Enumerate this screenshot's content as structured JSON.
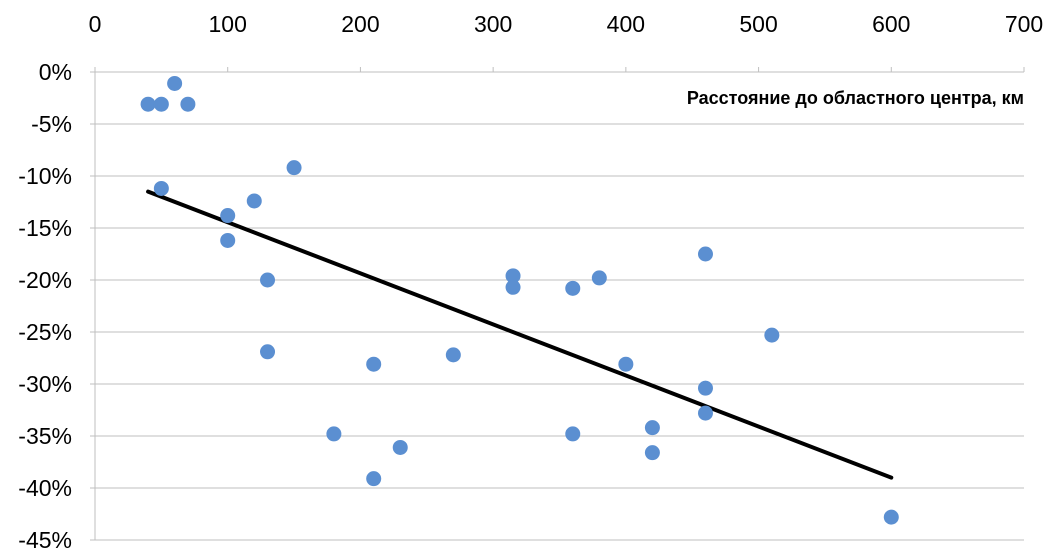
{
  "chart_data": {
    "type": "scatter",
    "title": "",
    "xlabel": "Расстояние до областного центра, км",
    "ylabel": "",
    "x_axis_position": "top",
    "xlim": [
      0,
      700
    ],
    "ylim": [
      -45,
      0
    ],
    "x_ticks": [
      0,
      100,
      200,
      300,
      400,
      500,
      600,
      700
    ],
    "x_tick_labels": [
      "0",
      "100",
      "200",
      "300",
      "400",
      "500",
      "600",
      "700"
    ],
    "y_ticks": [
      0,
      -5,
      -10,
      -15,
      -20,
      -25,
      -30,
      -35,
      -40,
      -45
    ],
    "y_tick_labels": [
      "0%",
      "-5%",
      "-10%",
      "-15%",
      "-20%",
      "-25%",
      "-30%",
      "-35%",
      "-40%",
      "-45%"
    ],
    "grid": "horizontal",
    "legend": "none",
    "series": [
      {
        "color": "#5B8FD1",
        "points": [
          {
            "x": 40,
            "y": -3.1
          },
          {
            "x": 50,
            "y": -3.1
          },
          {
            "x": 60,
            "y": -1.1
          },
          {
            "x": 70,
            "y": -3.1
          },
          {
            "x": 50,
            "y": -11.2
          },
          {
            "x": 100,
            "y": -13.8
          },
          {
            "x": 100,
            "y": -16.2
          },
          {
            "x": 120,
            "y": -12.4
          },
          {
            "x": 130,
            "y": -20.0
          },
          {
            "x": 130,
            "y": -26.9
          },
          {
            "x": 150,
            "y": -9.2
          },
          {
            "x": 180,
            "y": -34.8
          },
          {
            "x": 210,
            "y": -28.1
          },
          {
            "x": 210,
            "y": -39.1
          },
          {
            "x": 230,
            "y": -36.1
          },
          {
            "x": 270,
            "y": -27.2
          },
          {
            "x": 315,
            "y": -19.6
          },
          {
            "x": 315,
            "y": -20.7
          },
          {
            "x": 360,
            "y": -20.8
          },
          {
            "x": 360,
            "y": -34.8
          },
          {
            "x": 380,
            "y": -19.8
          },
          {
            "x": 400,
            "y": -28.1
          },
          {
            "x": 420,
            "y": -34.2
          },
          {
            "x": 420,
            "y": -36.6
          },
          {
            "x": 460,
            "y": -17.5
          },
          {
            "x": 460,
            "y": -30.4
          },
          {
            "x": 460,
            "y": -32.8
          },
          {
            "x": 510,
            "y": -25.3
          },
          {
            "x": 600,
            "y": -42.8
          }
        ]
      }
    ],
    "trendline": {
      "type": "linear",
      "color": "#000000",
      "points": [
        {
          "x": 40,
          "y": -11.5
        },
        {
          "x": 600,
          "y": -39.0
        }
      ]
    }
  }
}
